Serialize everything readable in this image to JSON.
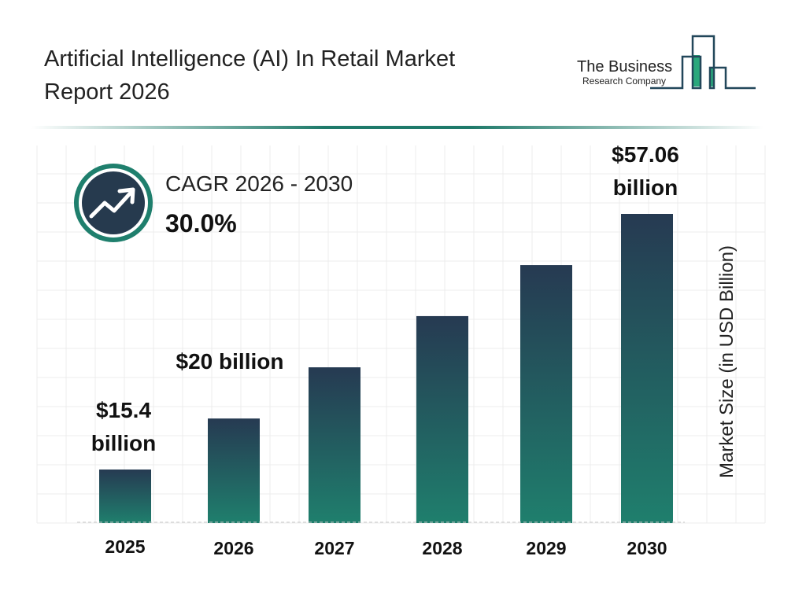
{
  "header": {
    "title_line1": "Artificial Intelligence (AI) In Retail Market",
    "title_line2": "Report 2026",
    "logo_text": "The Business Research Company"
  },
  "cagr": {
    "label": "CAGR 2026 - 2030",
    "value": "30.0%",
    "icon": "trending-up-icon"
  },
  "colors": {
    "bar_top": "#263a52",
    "bar_bottom": "#1f7f6d",
    "accent": "#1f7a6a"
  },
  "chart_data": {
    "type": "bar",
    "title": "Artificial Intelligence (AI) In Retail Market Report 2026",
    "xlabel": "",
    "ylabel": "Market Size (in USD Billion)",
    "categories": [
      "2025",
      "2026",
      "2027",
      "2028",
      "2029",
      "2030"
    ],
    "values": [
      15.4,
      20,
      26,
      33.8,
      43.9,
      57.06
    ],
    "data_labels": [
      "$15.4 billion",
      "$20 billion",
      "",
      "",
      "",
      "$57.06 billion"
    ],
    "grid": true
  }
}
